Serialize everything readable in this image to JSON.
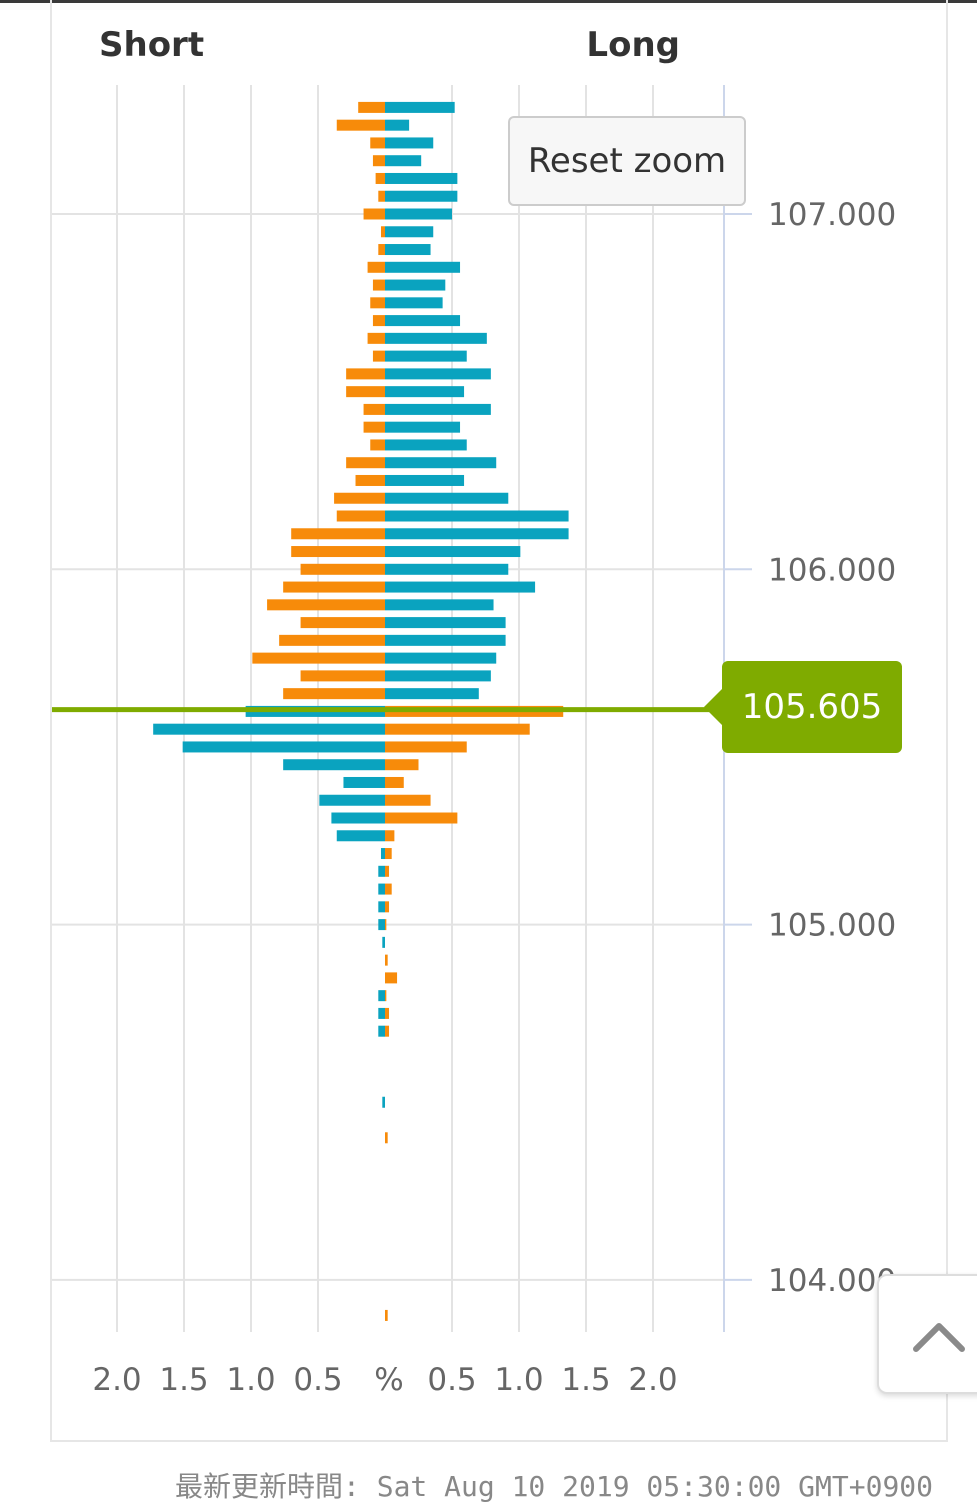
{
  "chart_data": {
    "type": "bar",
    "orientation": "horizontal-butterfly",
    "header_left": "Short",
    "header_right": "Long",
    "y_tick_labels": [
      "107.000",
      "106.000",
      "105.000",
      "104.000"
    ],
    "y_ticks": [
      107.0,
      106.0,
      105.0,
      104.0
    ],
    "y_range": [
      103.85,
      107.34
    ],
    "x_tick_labels": [
      "2.0",
      "1.5",
      "1.0",
      "0.5",
      "%",
      "0.5",
      "1.0",
      "1.5",
      "2.0"
    ],
    "x_range": [
      -2.0,
      2.0
    ],
    "current_price": "105.605",
    "current_price_value": 105.605,
    "grid": true,
    "colors": {
      "blue": "#0aa3bf",
      "orange": "#f78b0a",
      "current": "#7fab00"
    },
    "orders_above_note": "above current price: short = orange (left), long = blue (right)",
    "rows": [
      {
        "price": 107.3,
        "left": 0.2,
        "left_color": "orange",
        "right": 0.52,
        "right_color": "blue"
      },
      {
        "price": 107.25,
        "left": 0.36,
        "left_color": "orange",
        "right": 0.18,
        "right_color": "blue"
      },
      {
        "price": 107.2,
        "left": 0.11,
        "left_color": "orange",
        "right": 0.36,
        "right_color": "blue"
      },
      {
        "price": 107.15,
        "left": 0.09,
        "left_color": "orange",
        "right": 0.27,
        "right_color": "blue"
      },
      {
        "price": 107.1,
        "left": 0.07,
        "left_color": "orange",
        "right": 0.54,
        "right_color": "blue"
      },
      {
        "price": 107.05,
        "left": 0.05,
        "left_color": "orange",
        "right": 0.54,
        "right_color": "blue"
      },
      {
        "price": 107.0,
        "left": 0.16,
        "left_color": "orange",
        "right": 0.5,
        "right_color": "blue"
      },
      {
        "price": 106.95,
        "left": 0.03,
        "left_color": "orange",
        "right": 0.36,
        "right_color": "blue"
      },
      {
        "price": 106.9,
        "left": 0.05,
        "left_color": "orange",
        "right": 0.34,
        "right_color": "blue"
      },
      {
        "price": 106.85,
        "left": 0.13,
        "left_color": "orange",
        "right": 0.56,
        "right_color": "blue"
      },
      {
        "price": 106.8,
        "left": 0.09,
        "left_color": "orange",
        "right": 0.45,
        "right_color": "blue"
      },
      {
        "price": 106.75,
        "left": 0.11,
        "left_color": "orange",
        "right": 0.43,
        "right_color": "blue"
      },
      {
        "price": 106.7,
        "left": 0.09,
        "left_color": "orange",
        "right": 0.56,
        "right_color": "blue"
      },
      {
        "price": 106.65,
        "left": 0.13,
        "left_color": "orange",
        "right": 0.76,
        "right_color": "blue"
      },
      {
        "price": 106.6,
        "left": 0.09,
        "left_color": "orange",
        "right": 0.61,
        "right_color": "blue"
      },
      {
        "price": 106.55,
        "left": 0.29,
        "left_color": "orange",
        "right": 0.79,
        "right_color": "blue"
      },
      {
        "price": 106.5,
        "left": 0.29,
        "left_color": "orange",
        "right": 0.59,
        "right_color": "blue"
      },
      {
        "price": 106.45,
        "left": 0.16,
        "left_color": "orange",
        "right": 0.79,
        "right_color": "blue"
      },
      {
        "price": 106.4,
        "left": 0.16,
        "left_color": "orange",
        "right": 0.56,
        "right_color": "blue"
      },
      {
        "price": 106.35,
        "left": 0.11,
        "left_color": "orange",
        "right": 0.61,
        "right_color": "blue"
      },
      {
        "price": 106.3,
        "left": 0.29,
        "left_color": "orange",
        "right": 0.83,
        "right_color": "blue"
      },
      {
        "price": 106.25,
        "left": 0.22,
        "left_color": "orange",
        "right": 0.59,
        "right_color": "blue"
      },
      {
        "price": 106.2,
        "left": 0.38,
        "left_color": "orange",
        "right": 0.92,
        "right_color": "blue"
      },
      {
        "price": 106.15,
        "left": 0.36,
        "left_color": "orange",
        "right": 1.37,
        "right_color": "blue"
      },
      {
        "price": 106.1,
        "left": 0.7,
        "left_color": "orange",
        "right": 1.37,
        "right_color": "blue"
      },
      {
        "price": 106.05,
        "left": 0.7,
        "left_color": "orange",
        "right": 1.01,
        "right_color": "blue"
      },
      {
        "price": 106.0,
        "left": 0.63,
        "left_color": "orange",
        "right": 0.92,
        "right_color": "blue"
      },
      {
        "price": 105.95,
        "left": 0.76,
        "left_color": "orange",
        "right": 1.12,
        "right_color": "blue"
      },
      {
        "price": 105.9,
        "left": 0.88,
        "left_color": "orange",
        "right": 0.81,
        "right_color": "blue"
      },
      {
        "price": 105.85,
        "left": 0.63,
        "left_color": "orange",
        "right": 0.9,
        "right_color": "blue"
      },
      {
        "price": 105.8,
        "left": 0.79,
        "left_color": "orange",
        "right": 0.9,
        "right_color": "blue"
      },
      {
        "price": 105.75,
        "left": 0.99,
        "left_color": "orange",
        "right": 0.83,
        "right_color": "blue"
      },
      {
        "price": 105.7,
        "left": 0.63,
        "left_color": "orange",
        "right": 0.79,
        "right_color": "blue"
      },
      {
        "price": 105.65,
        "left": 0.76,
        "left_color": "orange",
        "right": 0.7,
        "right_color": "blue"
      },
      {
        "price": 105.6,
        "left": 1.04,
        "left_color": "blue",
        "right": 1.33,
        "right_color": "orange"
      },
      {
        "price": 105.55,
        "left": 1.73,
        "left_color": "blue",
        "right": 1.08,
        "right_color": "orange"
      },
      {
        "price": 105.5,
        "left": 1.51,
        "left_color": "blue",
        "right": 0.61,
        "right_color": "orange"
      },
      {
        "price": 105.45,
        "left": 0.76,
        "left_color": "blue",
        "right": 0.25,
        "right_color": "orange"
      },
      {
        "price": 105.4,
        "left": 0.31,
        "left_color": "blue",
        "right": 0.14,
        "right_color": "orange"
      },
      {
        "price": 105.35,
        "left": 0.49,
        "left_color": "blue",
        "right": 0.34,
        "right_color": "orange"
      },
      {
        "price": 105.3,
        "left": 0.4,
        "left_color": "blue",
        "right": 0.54,
        "right_color": "orange"
      },
      {
        "price": 105.25,
        "left": 0.36,
        "left_color": "blue",
        "right": 0.07,
        "right_color": "orange"
      },
      {
        "price": 105.2,
        "left": 0.03,
        "left_color": "blue",
        "right": 0.05,
        "right_color": "orange"
      },
      {
        "price": 105.15,
        "left": 0.05,
        "left_color": "blue",
        "right": 0.03,
        "right_color": "orange"
      },
      {
        "price": 105.1,
        "left": 0.05,
        "left_color": "blue",
        "right": 0.05,
        "right_color": "orange"
      },
      {
        "price": 105.05,
        "left": 0.05,
        "left_color": "blue",
        "right": 0.03,
        "right_color": "orange"
      },
      {
        "price": 105.0,
        "left": 0.05,
        "left_color": "blue",
        "right": 0.01,
        "right_color": "orange"
      },
      {
        "price": 104.95,
        "left": 0.02,
        "left_color": "blue",
        "right": 0.0,
        "right_color": "orange"
      },
      {
        "price": 104.9,
        "left": 0.0,
        "left_color": "blue",
        "right": 0.02,
        "right_color": "orange"
      },
      {
        "price": 104.85,
        "left": 0.0,
        "left_color": "blue",
        "right": 0.09,
        "right_color": "orange"
      },
      {
        "price": 104.8,
        "left": 0.05,
        "left_color": "blue",
        "right": 0.01,
        "right_color": "orange"
      },
      {
        "price": 104.75,
        "left": 0.05,
        "left_color": "blue",
        "right": 0.03,
        "right_color": "orange"
      },
      {
        "price": 104.7,
        "left": 0.05,
        "left_color": "blue",
        "right": 0.03,
        "right_color": "orange"
      },
      {
        "price": 104.5,
        "left": 0.02,
        "left_color": "blue",
        "right": 0.0,
        "right_color": "orange"
      },
      {
        "price": 104.4,
        "left": 0.0,
        "left_color": "blue",
        "right": 0.02,
        "right_color": "orange"
      },
      {
        "price": 103.9,
        "left": 0.0,
        "left_color": "blue",
        "right": 0.02,
        "right_color": "orange"
      }
    ]
  },
  "controls": {
    "reset_zoom_label": "Reset zoom",
    "scroll_top_icon": "chevron-up-icon"
  },
  "footer": {
    "text": "最新更新時間: Sat Aug 10 2019 05:30:00 GMT+0900"
  }
}
